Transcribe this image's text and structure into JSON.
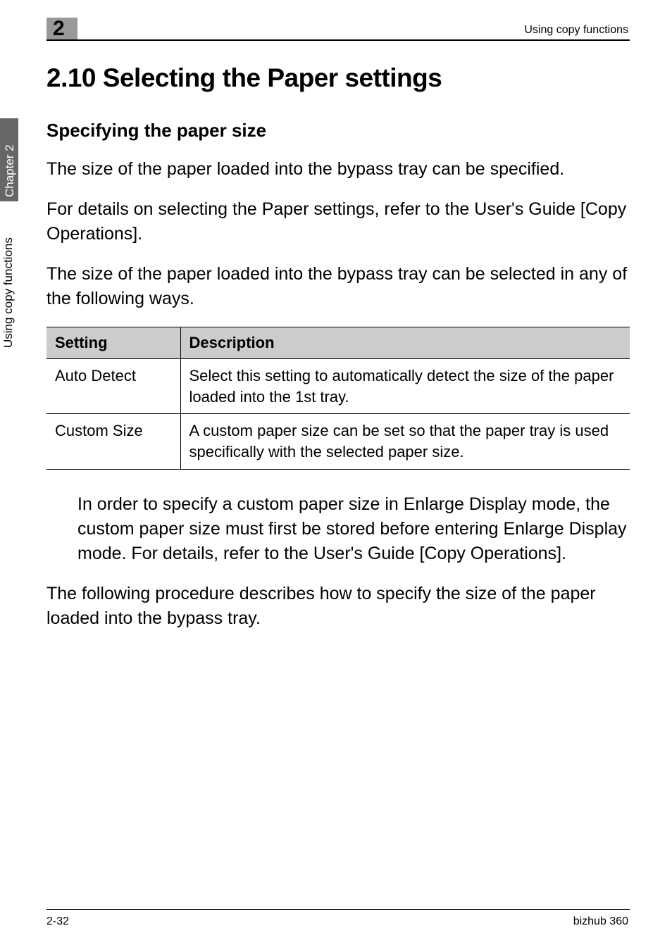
{
  "header": {
    "running_title": "Using copy functions",
    "chapter_number": "2"
  },
  "sidebar": {
    "chapter_label": "Chapter 2",
    "title_label": "Using copy functions"
  },
  "section": {
    "heading": "2.10  Selecting the Paper settings",
    "subheading": "Specifying the paper size",
    "para1": "The size of the paper loaded into the bypass tray can be specified.",
    "para2": "For details on selecting the Paper settings, refer to the User's Guide [Copy Operations].",
    "para3": "The size of the paper loaded into the bypass tray can be selected in any of the following ways.",
    "para4": "In order to specify a custom paper size in Enlarge Display mode, the custom paper size must first be stored before entering Enlarge Display mode. For details, refer to the User's Guide [Copy Operations].",
    "para5": "The following procedure describes how to specify the size of the paper loaded into the bypass tray."
  },
  "table": {
    "columns": [
      "Setting",
      "Description"
    ],
    "rows": [
      [
        "Auto Detect",
        "Select this setting to automatically detect the size of the paper loaded into the 1st tray."
      ],
      [
        "Custom Size",
        "A custom paper size can be set so that the paper tray is used specifically with the selected paper size."
      ]
    ]
  },
  "footer": {
    "page": "2-32",
    "model": "bizhub 360"
  }
}
